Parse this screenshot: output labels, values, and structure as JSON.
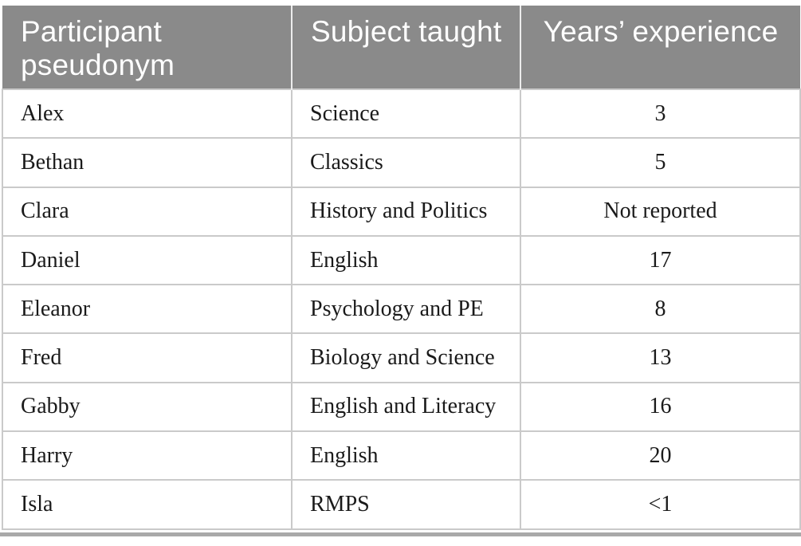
{
  "table": {
    "columns": [
      {
        "label": "Participant pseudonym",
        "align": "left"
      },
      {
        "label": "Subject taught",
        "align": "left"
      },
      {
        "label": "Years’ experience",
        "align": "center"
      }
    ],
    "rows": [
      {
        "pseudonym": "Alex",
        "subject": "Science",
        "experience": "3"
      },
      {
        "pseudonym": "Bethan",
        "subject": "Classics",
        "experience": "5"
      },
      {
        "pseudonym": "Clara",
        "subject": "History and Politics",
        "experience": "Not reported"
      },
      {
        "pseudonym": "Daniel",
        "subject": "English",
        "experience": "17"
      },
      {
        "pseudonym": "Eleanor",
        "subject": "Psychology and PE",
        "experience": "8"
      },
      {
        "pseudonym": "Fred",
        "subject": "Biology and Science",
        "experience": "13"
      },
      {
        "pseudonym": "Gabby",
        "subject": "English and Literacy",
        "experience": "16"
      },
      {
        "pseudonym": "Harry",
        "subject": "English",
        "experience": "20"
      },
      {
        "pseudonym": "Isla",
        "subject": "RMPS",
        "experience": "<1"
      }
    ],
    "colors": {
      "header_bg": "#8a8a8a",
      "header_text": "#ffffff",
      "body_text": "#1a1a1a",
      "row_border": "#cacaca",
      "bottom_rule": "#a9a9a9"
    }
  }
}
